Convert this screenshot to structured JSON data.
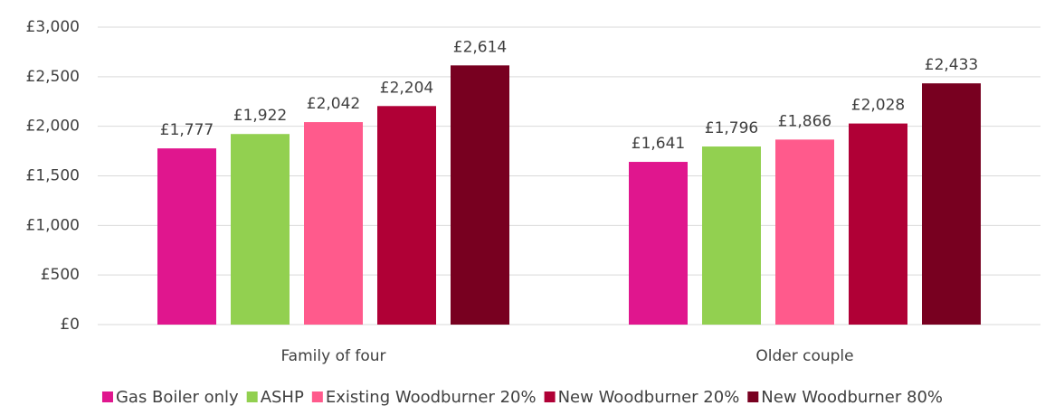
{
  "chart_data": {
    "type": "bar",
    "categories": [
      "Family of four",
      "Older couple"
    ],
    "series": [
      {
        "name": "Gas Boiler only",
        "color": "#e0168e",
        "values": [
          1777,
          1641
        ],
        "value_labels": [
          "£1,777",
          "£1,641"
        ]
      },
      {
        "name": "ASHP",
        "color": "#92d050",
        "values": [
          1922,
          1796
        ],
        "value_labels": [
          "£1,922",
          "£1,796"
        ]
      },
      {
        "name": "Existing Woodburner 20%",
        "color": "#ff5a8c",
        "values": [
          2042,
          1866
        ],
        "value_labels": [
          "£2,042",
          "£1,866"
        ]
      },
      {
        "name": "New Woodburner 20%",
        "color": "#b00036",
        "values": [
          2204,
          2028
        ],
        "value_labels": [
          "£2,204",
          "£2,028"
        ]
      },
      {
        "name": "New Woodburner 80%",
        "color": "#780020",
        "values": [
          2614,
          2433
        ],
        "value_labels": [
          "£2,614",
          "£2,433"
        ]
      }
    ],
    "ylim": [
      0,
      3000
    ],
    "yticks": [
      {
        "value": 0,
        "label": "£0"
      },
      {
        "value": 500,
        "label": "£500"
      },
      {
        "value": 1000,
        "label": "£1,000"
      },
      {
        "value": 1500,
        "label": "£1,500"
      },
      {
        "value": 2000,
        "label": "£2,000"
      },
      {
        "value": 2500,
        "label": "£2,500"
      },
      {
        "value": 3000,
        "label": "£3,000"
      }
    ],
    "grid": true,
    "legend": "bottom"
  }
}
